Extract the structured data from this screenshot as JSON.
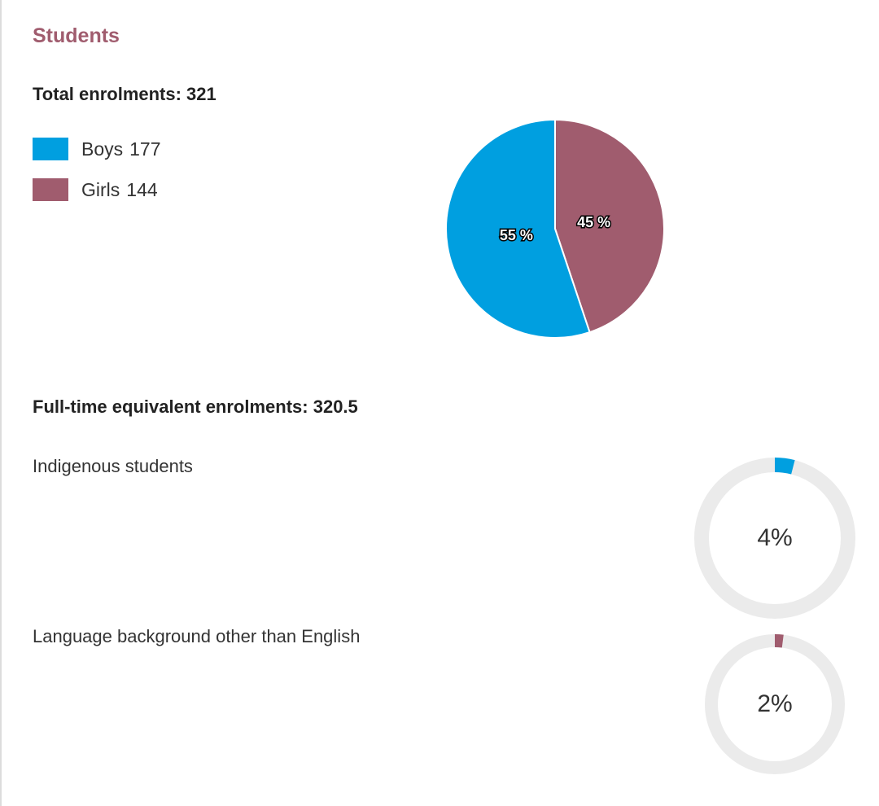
{
  "section": {
    "title": "Students"
  },
  "total_enrolments": {
    "text": "Total enrolments: 321"
  },
  "legend": [
    {
      "label": "Boys",
      "value": "177",
      "color": "#009fe0"
    },
    {
      "label": "Girls",
      "value": "144",
      "color": "#a05c6e"
    }
  ],
  "fte_enrolments": {
    "text": "Full-time equivalent enrolments: 320.5"
  },
  "indigenous": {
    "label": "Indigenous students",
    "percent_text": "4%"
  },
  "lbote": {
    "label": "Language background other than English",
    "percent_text": "2%"
  },
  "chart_data": [
    {
      "type": "pie",
      "slices": [
        {
          "label": "Girls",
          "value": 144,
          "percent": 45,
          "percent_label": "45 %",
          "color": "#a05c6e"
        },
        {
          "label": "Boys",
          "value": 177,
          "percent": 55,
          "percent_label": "55 %",
          "color": "#009fe0"
        }
      ]
    },
    {
      "type": "donut",
      "label": "Indigenous students",
      "percent": 4,
      "color": "#009fe0",
      "track_color": "#ebebeb"
    },
    {
      "type": "donut",
      "label": "Language background other than English",
      "percent": 2,
      "color": "#a05c6e",
      "track_color": "#ebebeb"
    }
  ]
}
